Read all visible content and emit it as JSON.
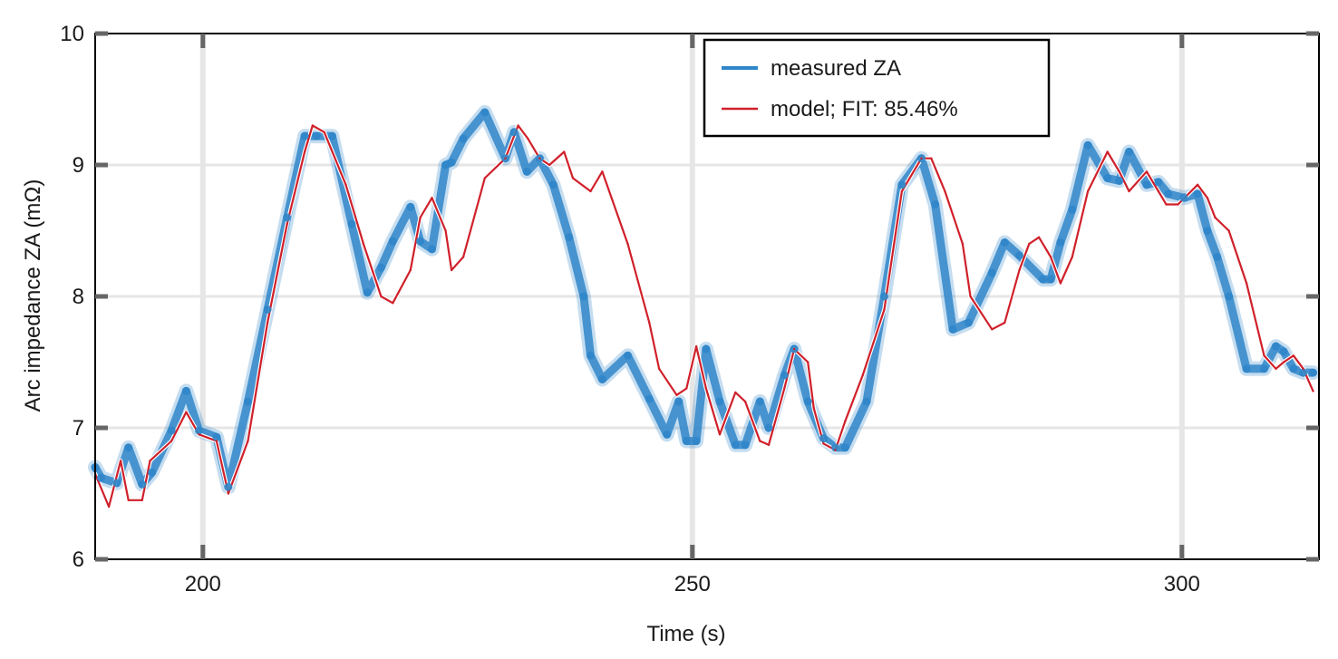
{
  "chart_data": {
    "type": "line",
    "xlabel": "Time (s)",
    "ylabel": "Arc impedance ZA (mΩ)",
    "xlim": [
      189,
      314
    ],
    "ylim": [
      6,
      10
    ],
    "xticks": [
      200,
      250,
      300
    ],
    "yticks": [
      6,
      7,
      8,
      9,
      10
    ],
    "grid": true,
    "legend_position": "top-right",
    "colors": {
      "measured": "#2f86c9",
      "model": "#d0202a",
      "grid": "#e6e6e6",
      "axis": "#000000"
    },
    "series": [
      {
        "name": "measured ZA",
        "x": [
          189.0,
          189.6,
          191.2,
          192.4,
          193.8,
          194.8,
          196.8,
          198.3,
          199.6,
          201.4,
          202.6,
          204.6,
          206.6,
          208.6,
          210.4,
          211.6,
          213.2,
          215.2,
          216.8,
          218.2,
          219.4,
          221.2,
          222.2,
          223.4,
          224.8,
          225.4,
          226.6,
          228.8,
          230.9,
          231.8,
          233.1,
          234.4,
          235.8,
          237.4,
          238.9,
          239.6,
          240.8,
          243.4,
          245.6,
          247.4,
          248.6,
          249.4,
          250.4,
          251.4,
          252.8,
          254.4,
          255.4,
          256.9,
          257.8,
          259.4,
          260.4,
          261.8,
          263.4,
          264.6,
          265.6,
          267.8,
          269.6,
          271.4,
          273.4,
          274.8,
          276.6,
          278.2,
          280.6,
          281.9,
          283.4,
          285.8,
          286.6,
          287.6,
          288.8,
          290.4,
          292.4,
          293.6,
          294.6,
          296.4,
          297.6,
          298.6,
          300.2,
          301.6,
          302.6,
          303.6,
          304.8,
          306.6,
          308.4,
          309.6,
          310.4,
          311.4,
          312.4,
          313.4
        ],
        "values": [
          6.7,
          6.62,
          6.58,
          6.85,
          6.57,
          6.66,
          6.98,
          7.28,
          6.98,
          6.93,
          6.55,
          7.2,
          7.9,
          8.6,
          9.22,
          9.22,
          9.22,
          8.55,
          8.03,
          8.22,
          8.42,
          8.68,
          8.42,
          8.36,
          9.0,
          9.02,
          9.2,
          9.4,
          9.05,
          9.25,
          8.95,
          9.05,
          8.85,
          8.45,
          8.0,
          7.55,
          7.37,
          7.55,
          7.22,
          6.95,
          7.2,
          6.9,
          6.9,
          7.6,
          7.2,
          6.87,
          6.87,
          7.2,
          7.0,
          7.4,
          7.6,
          7.2,
          6.92,
          6.85,
          6.85,
          7.2,
          8.0,
          8.85,
          9.05,
          8.7,
          7.75,
          7.8,
          8.18,
          8.41,
          8.31,
          8.13,
          8.13,
          8.41,
          8.66,
          9.15,
          8.9,
          8.88,
          9.1,
          8.85,
          8.87,
          8.78,
          8.75,
          8.78,
          8.5,
          8.3,
          8.0,
          7.45,
          7.45,
          7.62,
          7.58,
          7.45,
          7.42,
          7.42
        ]
      },
      {
        "name": "model; FIT: 85.46%",
        "x": [
          189.0,
          190.4,
          191.6,
          192.4,
          193.8,
          194.6,
          196.8,
          198.3,
          199.6,
          201.4,
          202.6,
          204.6,
          206.6,
          208.6,
          210.4,
          211.2,
          212.4,
          214.6,
          216.4,
          218.2,
          219.4,
          221.2,
          222.2,
          223.4,
          224.8,
          225.4,
          226.6,
          228.8,
          230.9,
          232.2,
          233.2,
          234.4,
          235.4,
          236.9,
          237.8,
          239.6,
          240.8,
          243.4,
          245.6,
          246.6,
          248.4,
          249.4,
          250.4,
          251.4,
          252.8,
          254.4,
          255.4,
          256.9,
          257.8,
          259.4,
          260.4,
          261.8,
          262.4,
          263.4,
          264.6,
          265.6,
          267.4,
          269.6,
          271.4,
          273.4,
          274.4,
          275.8,
          277.6,
          278.4,
          280.6,
          281.9,
          283.4,
          284.4,
          285.4,
          286.6,
          287.6,
          288.8,
          290.4,
          292.4,
          293.6,
          294.6,
          296.4,
          297.6,
          298.4,
          299.6,
          301.6,
          302.6,
          303.4,
          304.8,
          306.6,
          308.4,
          309.6,
          310.4,
          311.4,
          312.4,
          313.4
        ],
        "values": [
          6.65,
          6.4,
          6.75,
          6.45,
          6.45,
          6.75,
          6.9,
          7.12,
          6.95,
          6.9,
          6.5,
          6.9,
          7.8,
          8.55,
          9.1,
          9.3,
          9.25,
          8.85,
          8.4,
          8.0,
          7.95,
          8.2,
          8.6,
          8.75,
          8.5,
          8.2,
          8.3,
          8.9,
          9.05,
          9.3,
          9.2,
          9.05,
          9.0,
          9.1,
          8.9,
          8.8,
          8.95,
          8.4,
          7.8,
          7.45,
          7.25,
          7.3,
          7.62,
          7.3,
          6.95,
          7.27,
          7.2,
          6.9,
          6.87,
          7.3,
          7.6,
          7.5,
          7.15,
          6.88,
          6.83,
          7.05,
          7.4,
          7.9,
          8.8,
          9.05,
          9.05,
          8.8,
          8.4,
          8.0,
          7.75,
          7.8,
          8.2,
          8.4,
          8.45,
          8.3,
          8.1,
          8.3,
          8.8,
          9.1,
          8.95,
          8.8,
          8.95,
          8.8,
          8.7,
          8.7,
          8.85,
          8.75,
          8.6,
          8.5,
          8.1,
          7.55,
          7.45,
          7.5,
          7.55,
          7.45,
          7.28
        ]
      }
    ]
  }
}
